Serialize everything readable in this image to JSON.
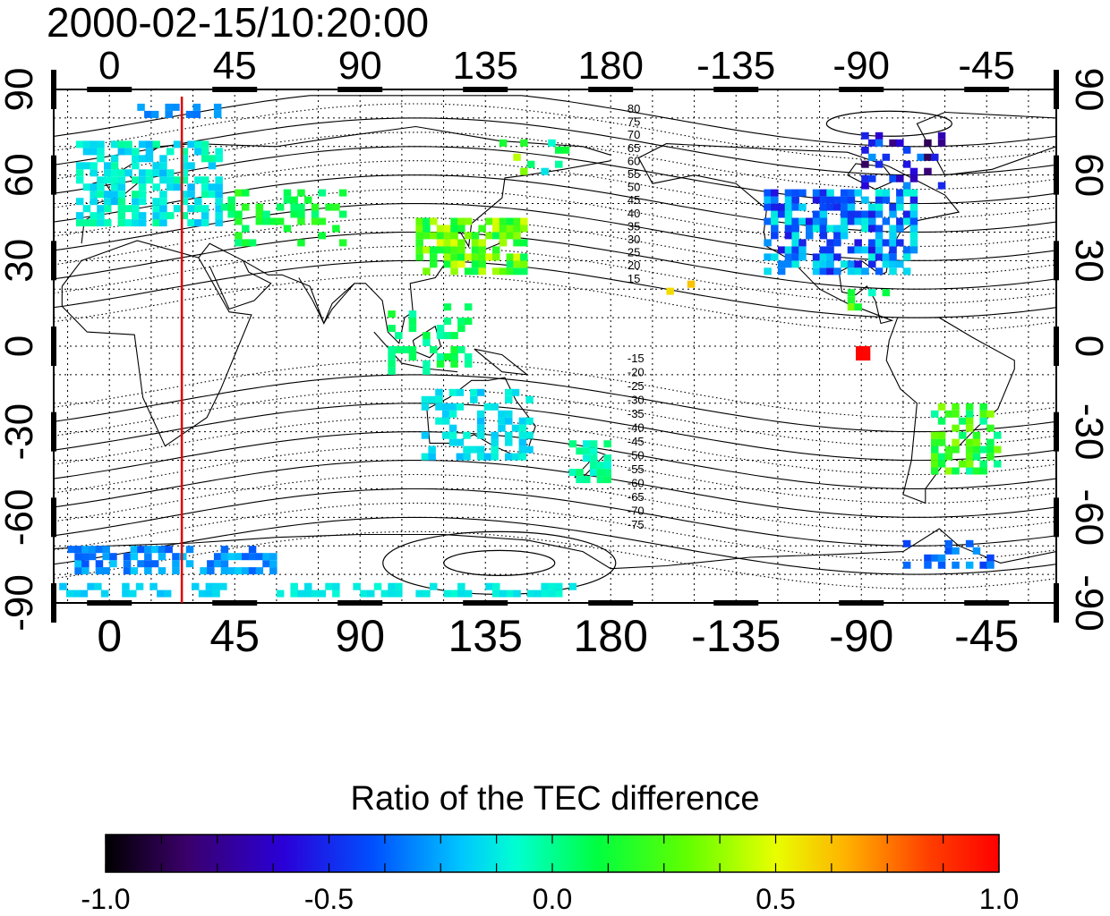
{
  "title": "2000-02-15/10:20:00",
  "map": {
    "x_ticks_top": [
      "0",
      "45",
      "90",
      "135",
      "180",
      "-135",
      "-90",
      "-45"
    ],
    "x_ticks_bottom": [
      "0",
      "45",
      "90",
      "135",
      "180",
      "-135",
      "-90",
      "-45"
    ],
    "y_ticks_left": [
      "90",
      "60",
      "30",
      "0",
      "-30",
      "-60",
      "-90"
    ],
    "y_ticks_right": [
      "90",
      "60",
      "30",
      "0",
      "-30",
      "-60",
      "-90"
    ],
    "x_tick_lon": [
      0,
      45,
      90,
      135,
      180,
      225,
      270,
      315
    ],
    "y_tick_lat": [
      90,
      60,
      30,
      0,
      -30,
      -60,
      -90
    ],
    "lon_range": [
      -20,
      340
    ],
    "lat_range": [
      -90,
      90
    ],
    "local_time_line_lon": 26,
    "contour_labels_north": [
      "80",
      "75",
      "70",
      "65",
      "60",
      "55",
      "50",
      "45",
      "40",
      "35",
      "30",
      "25",
      "20",
      "15"
    ],
    "contour_labels_south": [
      "-15",
      "-20",
      "-25",
      "-30",
      "-35",
      "-40",
      "-45",
      "-50",
      "-55",
      "-60",
      "-65",
      "-70",
      "-75"
    ],
    "colors": {
      "local_time_line": "#dd0000",
      "grid": "#000000",
      "coast": "#000000"
    }
  },
  "colorbar": {
    "title": "Ratio of the TEC difference",
    "tick_labels": [
      "-1.0",
      "-0.5",
      "0.0",
      "0.5",
      "1.0"
    ],
    "range": [
      -1.0,
      1.0
    ],
    "colormap": [
      "#000000",
      "#3a006a",
      "#2a00d8",
      "#0050ff",
      "#00c8ff",
      "#00ffd0",
      "#00ff40",
      "#60ff00",
      "#e8ff00",
      "#ffb000",
      "#ff4000",
      "#ff0000"
    ]
  }
}
